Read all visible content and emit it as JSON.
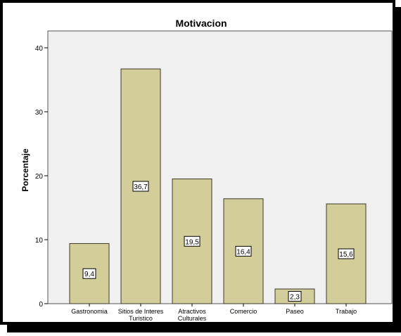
{
  "chart_data": {
    "type": "bar",
    "title": "Motivacion",
    "xlabel": "",
    "ylabel": "Porcentaje",
    "categories": [
      [
        "Gastronomia"
      ],
      [
        "Sitios de Interes",
        "Turistico"
      ],
      [
        "Atractivos",
        "Culturales"
      ],
      [
        "Comercio"
      ],
      [
        "Paseo"
      ],
      [
        "Trabajo"
      ]
    ],
    "values": [
      9.4,
      36.7,
      19.5,
      16.4,
      2.3,
      15.6
    ],
    "value_labels": [
      "9,4",
      "36,7",
      "19,5",
      "16,4",
      "2,3",
      "15,6"
    ],
    "ylim": [
      0,
      40
    ],
    "yticks": [
      0,
      10,
      20,
      30,
      40
    ],
    "ytick_labels": [
      "0",
      "10",
      "20",
      "30",
      "40"
    ],
    "grid": false,
    "colors": {
      "bar_fill": "#d3ce99",
      "bar_stroke": "#3a3a2a",
      "plot_background": "#f0f0f0",
      "frame": "#000000",
      "shadow": "#000000"
    }
  }
}
